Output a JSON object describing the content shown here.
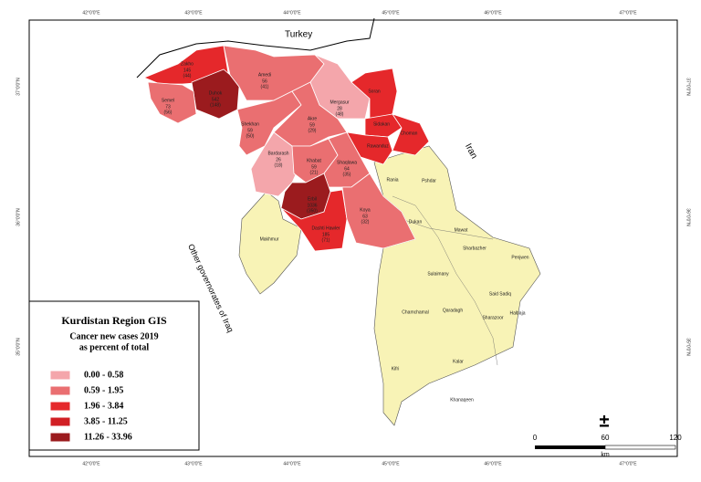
{
  "map": {
    "countries": [
      "Turkey",
      "Iran",
      "Other governorates of Iraq"
    ],
    "legend": {
      "title": "Kurdistan Region GIS",
      "subtitle": [
        "Cancer new cases 2019",
        "as percent of total"
      ],
      "classes": [
        {
          "label": "0.00 - 0.58",
          "color": "#f4a6ab"
        },
        {
          "label": "0.59 - 1.95",
          "color": "#ea6f71"
        },
        {
          "label": "1.96 - 3.84",
          "color": "#e5282b"
        },
        {
          "label": "3.85 - 11.25",
          "color": "#d11f24"
        },
        {
          "label": "11.26 - 33.96",
          "color": "#9b1b1e"
        }
      ]
    },
    "base_color": "#f8f3b6",
    "scale": {
      "labels": [
        "0",
        "60",
        "120"
      ],
      "unit": "km",
      "north_symbol": "±"
    },
    "top_coords": [
      "42°0'0\"E",
      "43°0'0\"E",
      "44°0'0\"E",
      "45°0'0\"E",
      "46°0'0\"E",
      "47°0'0\"E"
    ],
    "side_coords": [
      "37°0'0\"N",
      "36°0'0\"N",
      "35°0'0\"N"
    ],
    "districts": [
      {
        "name": "Zakho",
        "count": 145,
        "sub": "(44)",
        "class": 2
      },
      {
        "name": "Duhok",
        "count": 542,
        "sub": "(148)",
        "class": 4
      },
      {
        "name": "Semel",
        "count": 73,
        "sub": "(56)",
        "class": 1
      },
      {
        "name": "Amedi",
        "count": 56,
        "sub": "(41)",
        "class": 1
      },
      {
        "name": "Shekhan",
        "count": 59,
        "sub": "(50)",
        "class": 1
      },
      {
        "name": "Akre",
        "count": 59,
        "sub": "(29)",
        "class": 1
      },
      {
        "name": "Mergasur",
        "count": 28,
        "sub": "(48)",
        "class": 0
      },
      {
        "name": "Soran",
        "class": 2
      },
      {
        "name": "Sidakan",
        "class": 2
      },
      {
        "name": "Choman",
        "class": 2
      },
      {
        "name": "Rawanduz",
        "class": 2
      },
      {
        "name": "Bardarash",
        "count": 26,
        "sub": "(18)",
        "class": 0
      },
      {
        "name": "Khabat",
        "count": 59,
        "sub": "(21)",
        "class": 1
      },
      {
        "name": "Shaqlawa",
        "count": 64,
        "sub": "(35)",
        "class": 1
      },
      {
        "name": "Erbil",
        "count": 1036,
        "sub": "(350)",
        "class": 4
      },
      {
        "name": "Dashti Hawler",
        "count": 185,
        "sub": "(71)",
        "class": 2
      },
      {
        "name": "Koya",
        "count": 63,
        "sub": "(32)",
        "class": 1
      },
      {
        "name": "Makhmur"
      },
      {
        "name": "Rania"
      },
      {
        "name": "Pshdar"
      },
      {
        "name": "Dukan"
      },
      {
        "name": "Mawat"
      },
      {
        "name": "Sharbazher"
      },
      {
        "name": "Penjwen"
      },
      {
        "name": "Sulaimany"
      },
      {
        "name": "Said Sadiq"
      },
      {
        "name": "Qaradagh"
      },
      {
        "name": "Chamchamal"
      },
      {
        "name": "Sharazoor"
      },
      {
        "name": "Halbaja"
      },
      {
        "name": "Kifri"
      },
      {
        "name": "Kalar"
      },
      {
        "name": "Khanaqeen"
      }
    ]
  }
}
